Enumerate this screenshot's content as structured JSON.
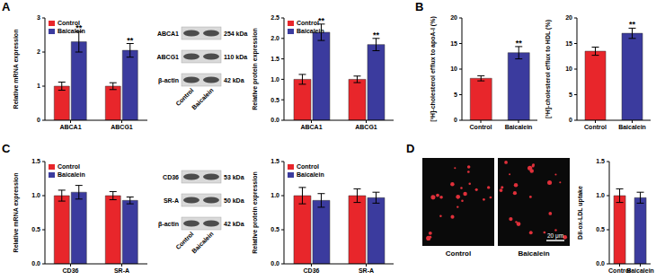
{
  "panel_labels": [
    "A",
    "B",
    "C",
    "D"
  ],
  "chart_data": [
    {
      "type": "bar",
      "y_label": "Relative mRNA expression",
      "categories": [
        "ABCA1",
        "ABCG1"
      ],
      "series": [
        {
          "name": "Control",
          "color": "#e8262b",
          "values": [
            1.0,
            1.0
          ],
          "errors": [
            0.12,
            0.1
          ]
        },
        {
          "name": "Baicalein",
          "color": "#3b3b9e",
          "values": [
            2.3,
            2.05
          ],
          "errors": [
            0.3,
            0.2
          ],
          "significance": [
            "**",
            "**"
          ]
        }
      ],
      "ylim": [
        0,
        3
      ],
      "yticks": [
        0,
        1,
        2,
        3
      ],
      "legend": "upper left"
    },
    {
      "type": "bar",
      "y_label": "Relative protein expression",
      "categories": [
        "ABCA1",
        "ABCG1"
      ],
      "series": [
        {
          "name": "Control",
          "color": "#e8262b",
          "values": [
            1.0,
            1.0
          ],
          "errors": [
            0.12,
            0.08
          ]
        },
        {
          "name": "Baicalein",
          "color": "#3b3b9e",
          "values": [
            2.15,
            1.85
          ],
          "errors": [
            0.2,
            0.15
          ],
          "significance": [
            "**",
            "**"
          ]
        }
      ],
      "ylim": [
        0,
        2.5
      ],
      "yticks": [
        {
          "value": 0,
          "label": "0.0"
        },
        {
          "value": 0.5,
          "label": "0.5"
        },
        {
          "value": 1,
          "label": "1.0"
        },
        {
          "value": 1.5,
          "label": "1.5"
        },
        {
          "value": 2,
          "label": "2.0"
        },
        {
          "value": 2.5,
          "label": "2.5"
        }
      ],
      "legend": "upper left"
    },
    {
      "type": "bar",
      "y_label": "[³H]-cholesterol efflux to apoA-I (%)",
      "categories": [
        "Control",
        "Baicalein"
      ],
      "values": [
        8.2,
        13.2
      ],
      "errors": [
        0.5,
        1.2
      ],
      "colors": [
        "#e8262b",
        "#3b3b9e"
      ],
      "significance": [
        null,
        "**"
      ],
      "ylim": [
        0,
        20
      ],
      "yticks": [
        0,
        5,
        10,
        15,
        20
      ]
    },
    {
      "type": "bar",
      "y_label": "[³H]-cholesterol efflux to HDL (%)",
      "categories": [
        "Control",
        "Baicalein"
      ],
      "values": [
        13.5,
        17.0
      ],
      "errors": [
        0.8,
        1.0
      ],
      "colors": [
        "#e8262b",
        "#3b3b9e"
      ],
      "significance": [
        null,
        "**"
      ],
      "ylim": [
        0,
        20
      ],
      "yticks": [
        0,
        5,
        10,
        15,
        20
      ]
    },
    {
      "type": "bar",
      "y_label": "Relative mRNA expression",
      "categories": [
        "CD36",
        "SR-A"
      ],
      "series": [
        {
          "name": "Control",
          "color": "#e8262b",
          "values": [
            1.0,
            1.0
          ],
          "errors": [
            0.08,
            0.06
          ]
        },
        {
          "name": "Baicalein",
          "color": "#3b3b9e",
          "values": [
            1.05,
            0.93
          ],
          "errors": [
            0.1,
            0.05
          ]
        }
      ],
      "ylim": [
        0,
        1.5
      ],
      "yticks": [
        {
          "value": 0,
          "label": "0.0"
        },
        {
          "value": 0.5,
          "label": "0.5"
        },
        {
          "value": 1,
          "label": "1.0"
        },
        {
          "value": 1.5,
          "label": "1.5"
        }
      ],
      "legend": "upper left"
    },
    {
      "type": "bar",
      "y_label": "Relative protein expression",
      "categories": [
        "CD36",
        "SR-A"
      ],
      "series": [
        {
          "name": "Control",
          "color": "#e8262b",
          "values": [
            1.0,
            1.0
          ],
          "errors": [
            0.12,
            0.1
          ]
        },
        {
          "name": "Baicalein",
          "color": "#3b3b9e",
          "values": [
            0.93,
            0.97
          ],
          "errors": [
            0.1,
            0.08
          ]
        }
      ],
      "ylim": [
        0,
        1.5
      ],
      "yticks": [
        {
          "value": 0,
          "label": "0.0"
        },
        {
          "value": 0.5,
          "label": "0.5"
        },
        {
          "value": 1,
          "label": "1.0"
        },
        {
          "value": 1.5,
          "label": "1.5"
        }
      ],
      "legend": "upper left"
    },
    {
      "type": "bar",
      "y_label": "Dil-ox-LDL uptake",
      "categories": [
        "Control",
        "Baicalein"
      ],
      "values": [
        1.0,
        0.97
      ],
      "errors": [
        0.1,
        0.08
      ],
      "colors": [
        "#e8262b",
        "#3b3b9e"
      ],
      "ylim": [
        0,
        1.5
      ],
      "yticks": [
        {
          "value": 0,
          "label": "0.0"
        },
        {
          "value": 0.5,
          "label": "0.5"
        },
        {
          "value": 1,
          "label": "1.0"
        },
        {
          "value": 1.5,
          "label": "1.5"
        }
      ]
    }
  ],
  "blots": [
    {
      "proteins": [
        {
          "name": "ABCA1",
          "size": "254 kDa"
        },
        {
          "name": "ABCG1",
          "size": "110 kDa"
        },
        {
          "name": "β-actin",
          "size": "42 kDa"
        }
      ],
      "lanes": [
        "Control",
        "Baicalein"
      ]
    },
    {
      "proteins": [
        {
          "name": "CD36",
          "size": "53 kDa"
        },
        {
          "name": "SR-A",
          "size": "50 kDa"
        },
        {
          "name": "β-actin",
          "size": "42 kDa"
        }
      ],
      "lanes": [
        "Control",
        "Baicalein"
      ]
    }
  ],
  "images": {
    "panels": [
      "Control",
      "Baicalein"
    ],
    "scale_bar": "20 μm"
  }
}
